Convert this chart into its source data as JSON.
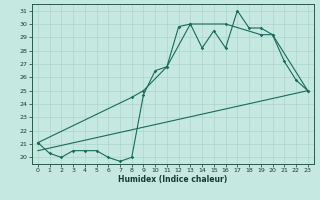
{
  "xlabel": "Humidex (Indice chaleur)",
  "bg_color": "#c5e8e0",
  "grid_color": "#aed4cc",
  "line_color": "#1a6b5a",
  "xlim": [
    -0.5,
    23.5
  ],
  "ylim": [
    19.5,
    31.5
  ],
  "yticks": [
    20,
    21,
    22,
    23,
    24,
    25,
    26,
    27,
    28,
    29,
    30,
    31
  ],
  "xticks": [
    0,
    1,
    2,
    3,
    4,
    5,
    6,
    7,
    8,
    9,
    10,
    11,
    12,
    13,
    14,
    15,
    16,
    17,
    18,
    19,
    20,
    21,
    22,
    23
  ],
  "line1_x": [
    0,
    1,
    2,
    3,
    4,
    5,
    6,
    7,
    8,
    9,
    10,
    11,
    12,
    13,
    14,
    15,
    16,
    17,
    18,
    19,
    20,
    21,
    22,
    23
  ],
  "line1_y": [
    21.1,
    20.3,
    20.0,
    20.5,
    20.5,
    20.5,
    20.0,
    19.7,
    20.0,
    24.7,
    26.5,
    26.8,
    29.8,
    30.0,
    28.2,
    29.5,
    28.2,
    31.0,
    29.7,
    29.7,
    29.2,
    27.2,
    25.8,
    25.0
  ],
  "line2_x": [
    0,
    8,
    9,
    11,
    13,
    16,
    19,
    20,
    23
  ],
  "line2_y": [
    21.1,
    24.5,
    25.0,
    26.8,
    30.0,
    30.0,
    29.2,
    29.2,
    25.0
  ],
  "line3_x": [
    0,
    23
  ],
  "line3_y": [
    20.5,
    25.0
  ]
}
